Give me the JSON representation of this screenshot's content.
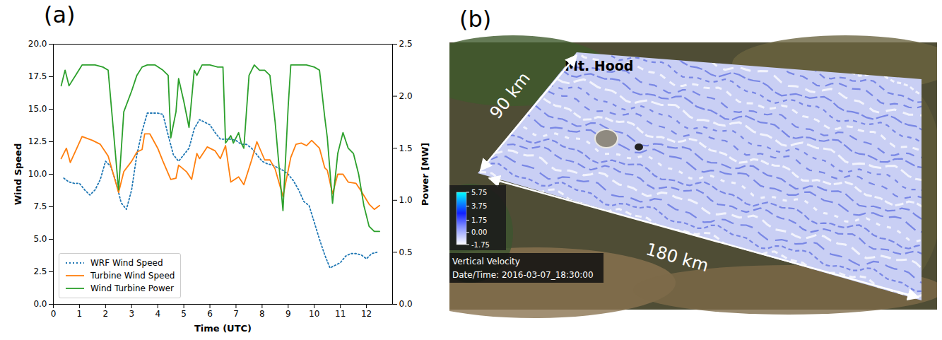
{
  "chart_data": {
    "type": "line",
    "title": "(a)",
    "x_label": "Time (UTC)",
    "y_label": "Wind Speed",
    "y2_label": "Power [MW]",
    "xlim": [
      0,
      13
    ],
    "xticks": [
      0,
      1,
      2,
      3,
      4,
      5,
      6,
      7,
      8,
      9,
      10,
      11,
      12
    ],
    "ylim": [
      0,
      20
    ],
    "yticks": [
      {
        "value": 0,
        "label": "0.0"
      },
      {
        "value": 2.5,
        "label": "2.5"
      },
      {
        "value": 5,
        "label": "5.0"
      },
      {
        "value": 7.5,
        "label": "7.5"
      },
      {
        "value": 10,
        "label": "10.0"
      },
      {
        "value": 12.5,
        "label": "12.5"
      },
      {
        "value": 15,
        "label": "15.0"
      },
      {
        "value": 17.5,
        "label": "17.5"
      },
      {
        "value": 20,
        "label": "20.0"
      }
    ],
    "y2lim": [
      0,
      2.5
    ],
    "y2ticks": [
      {
        "value": 0,
        "label": "0.0"
      },
      {
        "value": 0.5,
        "label": "0.5"
      },
      {
        "value": 1,
        "label": "1.0"
      },
      {
        "value": 1.5,
        "label": "1.5"
      },
      {
        "value": 2,
        "label": "2.0"
      },
      {
        "value": 2.5,
        "label": "2.5"
      }
    ],
    "grid": false,
    "legend": "lower left",
    "series": [
      {
        "name": "WRF Wind Speed",
        "color": "#1f77b4",
        "line_style": "dotted",
        "x": [
          0.4,
          0.6,
          0.8,
          1.0,
          1.2,
          1.4,
          1.6,
          1.8,
          2.0,
          2.2,
          2.4,
          2.6,
          2.8,
          3.0,
          3.2,
          3.4,
          3.6,
          3.8,
          4.0,
          4.2,
          4.4,
          4.6,
          4.8,
          5.0,
          5.2,
          5.4,
          5.6,
          5.8,
          6.0,
          6.2,
          6.4,
          6.6,
          6.8,
          7.0,
          7.2,
          7.4,
          7.6,
          7.8,
          8.0,
          8.2,
          8.4,
          8.6,
          8.8,
          9.0,
          9.2,
          9.4,
          9.6,
          9.8,
          10.0,
          10.2,
          10.4,
          10.6,
          10.8,
          11.0,
          11.2,
          11.4,
          11.6,
          11.8,
          12.0,
          12.2,
          12.4
        ],
        "values": [
          9.7,
          9.4,
          9.3,
          9.3,
          8.8,
          8.4,
          8.8,
          9.6,
          11.0,
          10.6,
          9.4,
          7.8,
          7.3,
          8.8,
          11.5,
          13.3,
          14.7,
          14.7,
          14.7,
          14.6,
          13.0,
          11.5,
          11.0,
          11.5,
          12.0,
          13.5,
          14.2,
          14.0,
          13.8,
          13.2,
          12.7,
          12.7,
          12.7,
          12.6,
          12.3,
          12.3,
          12.0,
          11.5,
          11.0,
          10.8,
          10.7,
          10.5,
          10.3,
          10.0,
          9.5,
          8.8,
          7.9,
          7.6,
          6.3,
          5.0,
          3.8,
          2.8,
          3.0,
          3.2,
          3.7,
          3.9,
          3.9,
          3.8,
          3.5,
          3.9,
          4.0
        ]
      },
      {
        "name": "Turbine Wind Speed",
        "color": "#ff7f0e",
        "line_style": "solid",
        "x": [
          0.3,
          0.5,
          0.65,
          0.9,
          1.1,
          1.5,
          1.8,
          2.1,
          2.5,
          2.7,
          3.0,
          3.2,
          3.4,
          3.5,
          3.7,
          4.0,
          4.2,
          4.5,
          4.7,
          4.8,
          5.1,
          5.3,
          5.5,
          5.6,
          5.9,
          6.2,
          6.4,
          6.6,
          6.8,
          7.1,
          7.3,
          7.6,
          7.8,
          8.1,
          8.3,
          8.5,
          8.8,
          9.1,
          9.3,
          9.5,
          9.7,
          9.9,
          10.2,
          10.4,
          10.5,
          10.7,
          10.9,
          11.1,
          11.3,
          11.6,
          11.8,
          12.1,
          12.3,
          12.5
        ],
        "values": [
          11.2,
          12.0,
          10.9,
          12.0,
          12.9,
          12.6,
          12.3,
          11.4,
          8.6,
          10.2,
          11.0,
          11.7,
          11.9,
          13.1,
          13.1,
          12.0,
          11.0,
          9.6,
          9.7,
          10.7,
          10.2,
          9.6,
          11.6,
          11.2,
          12.1,
          11.8,
          11.2,
          12.2,
          9.4,
          9.8,
          9.2,
          11.1,
          12.5,
          11.1,
          11.1,
          10.4,
          8.3,
          11.3,
          12.3,
          12.4,
          12.2,
          12.6,
          12.0,
          10.5,
          10.3,
          8.5,
          10.0,
          10.0,
          9.4,
          9.3,
          8.7,
          7.7,
          7.3,
          7.6
        ]
      },
      {
        "name": "Wind Turbine Power",
        "color": "#2ca02c",
        "line_style": "solid",
        "axis": "y2",
        "x": [
          0.3,
          0.45,
          0.6,
          0.85,
          1.1,
          1.6,
          1.9,
          2.1,
          2.5,
          2.7,
          3.0,
          3.2,
          3.4,
          3.6,
          3.9,
          4.2,
          4.4,
          4.5,
          4.7,
          4.8,
          5.0,
          5.2,
          5.4,
          5.5,
          5.7,
          6.0,
          6.3,
          6.5,
          6.6,
          6.8,
          6.9,
          7.1,
          7.2,
          7.3,
          7.5,
          7.7,
          7.9,
          8.1,
          8.3,
          8.5,
          8.8,
          9.0,
          9.1,
          9.3,
          9.7,
          10.0,
          10.2,
          10.4,
          10.5,
          10.7,
          10.9,
          11.1,
          11.3,
          11.5,
          11.7,
          11.9,
          12.1,
          12.3,
          12.5
        ],
        "values": [
          2.1,
          2.25,
          2.1,
          2.2,
          2.3,
          2.3,
          2.28,
          2.25,
          1.1,
          1.85,
          2.05,
          2.2,
          2.28,
          2.3,
          2.3,
          2.25,
          2.2,
          1.6,
          1.85,
          2.17,
          1.95,
          1.7,
          2.25,
          2.2,
          2.3,
          2.3,
          2.28,
          2.28,
          1.55,
          1.62,
          1.55,
          1.65,
          1.55,
          1.5,
          2.2,
          2.3,
          2.25,
          2.25,
          2.2,
          1.75,
          0.9,
          1.9,
          2.3,
          2.3,
          2.3,
          2.28,
          2.25,
          1.8,
          1.6,
          0.97,
          1.45,
          1.65,
          1.5,
          1.45,
          1.25,
          0.95,
          0.75,
          0.7,
          0.7
        ]
      }
    ]
  },
  "image_panel": {
    "label": "(b)",
    "place_label": "Mt. Hood",
    "width_label": "90 km",
    "length_label": "180 km",
    "colorbar": {
      "title": "Vertical Velocity",
      "range": [
        -1.75,
        5.75
      ],
      "ticks": [
        5.75,
        3.75,
        1.75,
        {
          "value": 0,
          "label": "0.00"
        },
        -1.75
      ]
    },
    "timestamp": "Date/Time: 2016-03-07_18:30:00"
  }
}
